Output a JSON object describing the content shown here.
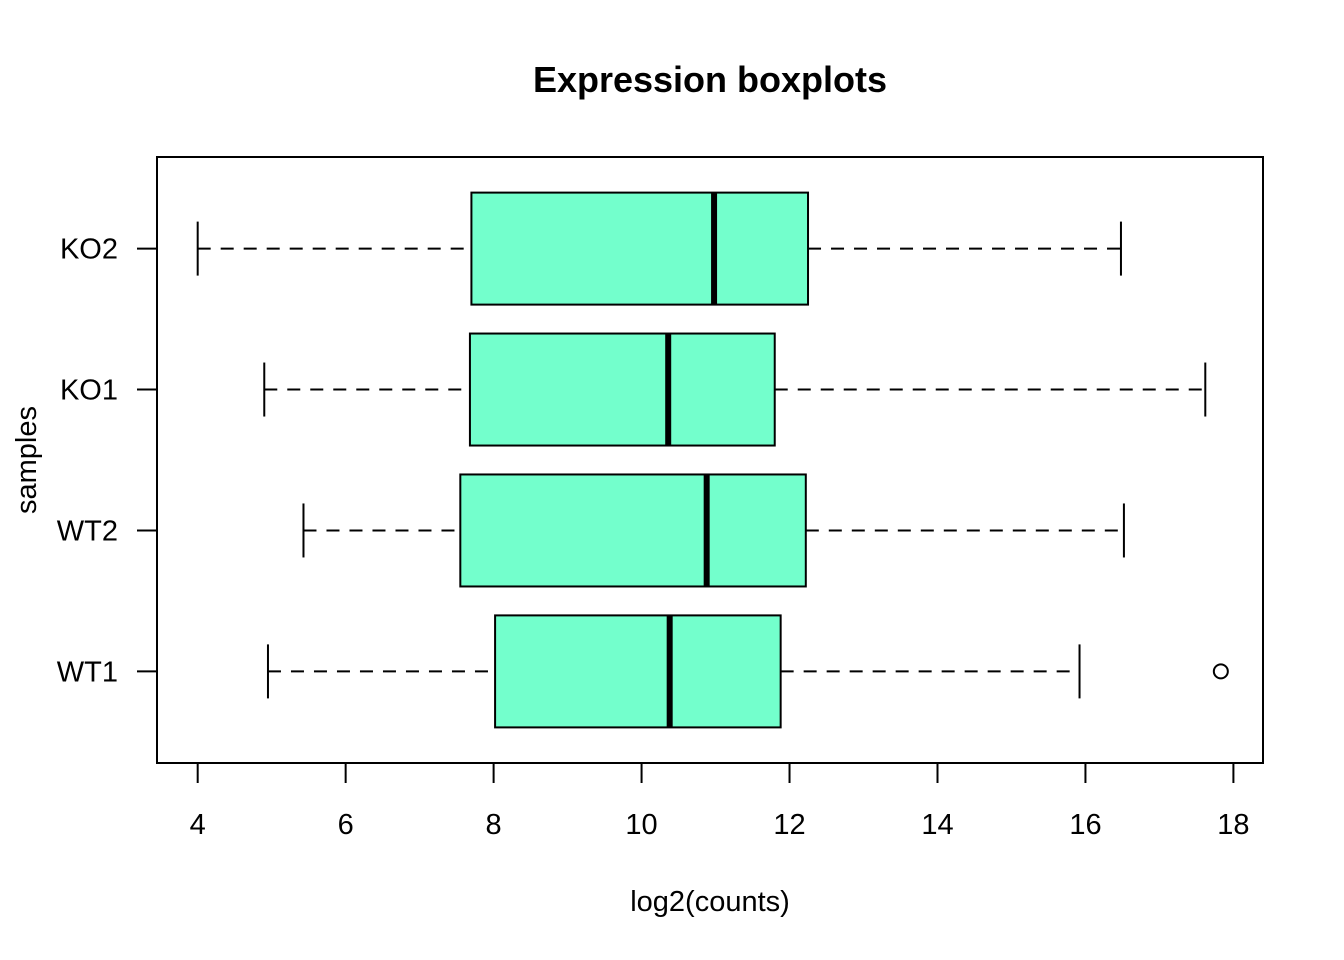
{
  "chart_data": {
    "type": "boxplot",
    "orientation": "horizontal",
    "title": "Expression boxplots",
    "xlabel": "log2(counts)",
    "ylabel": "samples",
    "xlim": [
      3.45,
      18.4
    ],
    "xticks": [
      4,
      6,
      8,
      10,
      12,
      14,
      16,
      18
    ],
    "categories": [
      "WT1",
      "WT2",
      "KO1",
      "KO2"
    ],
    "box_color": "#73ffcc",
    "line_color": "#000000",
    "grid": false,
    "legend": "none",
    "series": [
      {
        "name": "WT1",
        "whisker_low": 4.95,
        "q1": 8.02,
        "median": 10.38,
        "q3": 11.88,
        "whisker_high": 15.92,
        "outliers": [
          17.83
        ]
      },
      {
        "name": "WT2",
        "whisker_low": 5.43,
        "q1": 7.55,
        "median": 10.88,
        "q3": 12.22,
        "whisker_high": 16.52,
        "outliers": []
      },
      {
        "name": "KO1",
        "whisker_low": 4.9,
        "q1": 7.68,
        "median": 10.36,
        "q3": 11.8,
        "whisker_high": 17.62,
        "outliers": []
      },
      {
        "name": "KO2",
        "whisker_low": 4.0,
        "q1": 7.7,
        "median": 10.98,
        "q3": 12.25,
        "whisker_high": 16.48,
        "outliers": []
      }
    ]
  }
}
